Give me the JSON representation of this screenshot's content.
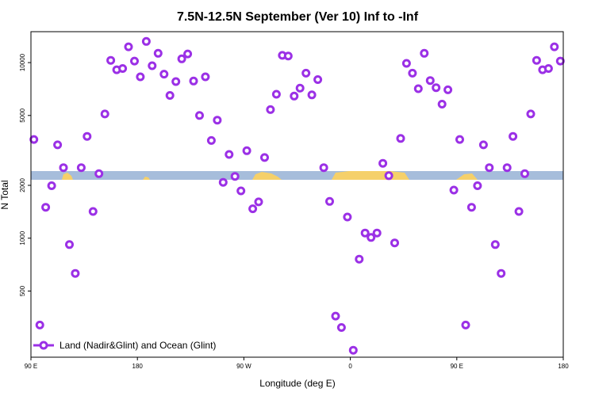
{
  "chart_data": {
    "type": "scatter",
    "title": "7.5N-12.5N September (Ver 10)   Inf to -Inf",
    "xlabel": "Longitude (deg E)",
    "ylabel": "N Total",
    "y_scale": "log",
    "xlim": [
      90,
      540
    ],
    "ylim": [
      210,
      15000
    ],
    "x_ticks": [
      {
        "value": 90,
        "label": "90 E"
      },
      {
        "value": 180,
        "label": "180"
      },
      {
        "value": 270,
        "label": "90 W"
      },
      {
        "value": 360,
        "label": "0"
      },
      {
        "value": 450,
        "label": "90 E"
      },
      {
        "value": 540,
        "label": "180"
      }
    ],
    "y_ticks": [
      {
        "value": 500,
        "label": "500"
      },
      {
        "value": 1000,
        "label": "1000"
      },
      {
        "value": 2000,
        "label": "2000"
      },
      {
        "value": 5000,
        "label": "5000"
      },
      {
        "value": 10000,
        "label": "10000"
      }
    ],
    "grid": false,
    "legend": {
      "position": "bottom-left",
      "entries": [
        "Land (Nadir&Glint) and Ocean (Glint)"
      ]
    },
    "series": [
      {
        "name": "Land (Nadir&Glint) and Ocean (Glint)",
        "color": "#9b30e6",
        "points": [
          [
            92.5,
            3650
          ],
          [
            97.5,
            320
          ],
          [
            102.5,
            1500
          ],
          [
            107.5,
            1990
          ],
          [
            112.5,
            3400
          ],
          [
            117.5,
            2520
          ],
          [
            122.5,
            920
          ],
          [
            127.5,
            630
          ],
          [
            132.5,
            2520
          ],
          [
            137.5,
            3800
          ],
          [
            142.5,
            1420
          ],
          [
            147.5,
            2330
          ],
          [
            152.5,
            5100
          ],
          [
            157.5,
            10300
          ],
          [
            162.5,
            9100
          ],
          [
            167.5,
            9250
          ],
          [
            172.5,
            12300
          ],
          [
            177.5,
            10200
          ],
          [
            182.5,
            8300
          ],
          [
            187.5,
            13200
          ],
          [
            192.5,
            9600
          ],
          [
            197.5,
            11300
          ],
          [
            202.5,
            8600
          ],
          [
            207.5,
            6500
          ],
          [
            212.5,
            7800
          ],
          [
            217.5,
            10500
          ],
          [
            222.5,
            11200
          ],
          [
            227.5,
            7850
          ],
          [
            232.5,
            5000
          ],
          [
            237.5,
            8300
          ],
          [
            242.5,
            3600
          ],
          [
            247.5,
            4700
          ],
          [
            252.5,
            2080
          ],
          [
            257.5,
            3000
          ],
          [
            262.5,
            2250
          ],
          [
            267.5,
            1860
          ],
          [
            272.5,
            3150
          ],
          [
            277.5,
            1470
          ],
          [
            282.5,
            1610
          ],
          [
            287.5,
            2880
          ],
          [
            292.5,
            5400
          ],
          [
            297.5,
            6600
          ],
          [
            302.5,
            11000
          ],
          [
            307.5,
            10900
          ],
          [
            312.5,
            6450
          ],
          [
            317.5,
            7150
          ],
          [
            322.5,
            8700
          ],
          [
            327.5,
            6550
          ],
          [
            332.5,
            8000
          ],
          [
            337.5,
            2520
          ],
          [
            342.5,
            1620
          ],
          [
            347.5,
            360
          ],
          [
            352.5,
            310
          ],
          [
            357.5,
            1320
          ],
          [
            362.5,
            230
          ],
          [
            367.5,
            760
          ],
          [
            372.5,
            1070
          ],
          [
            377.5,
            1010
          ],
          [
            382.5,
            1070
          ],
          [
            387.5,
            2670
          ],
          [
            392.5,
            2270
          ],
          [
            397.5,
            940
          ],
          [
            402.5,
            3700
          ],
          [
            407.5,
            9900
          ],
          [
            412.5,
            8700
          ],
          [
            417.5,
            7100
          ],
          [
            422.5,
            11300
          ],
          [
            427.5,
            7900
          ],
          [
            432.5,
            7200
          ],
          [
            437.5,
            5800
          ],
          [
            442.5,
            7000
          ],
          [
            447.5,
            1880
          ],
          [
            452.5,
            3650
          ],
          [
            457.5,
            320
          ],
          [
            462.5,
            1500
          ],
          [
            467.5,
            1990
          ],
          [
            472.5,
            3400
          ],
          [
            477.5,
            2520
          ],
          [
            482.5,
            920
          ],
          [
            487.5,
            630
          ],
          [
            492.5,
            2520
          ],
          [
            497.5,
            3800
          ],
          [
            502.5,
            1420
          ],
          [
            507.5,
            2330
          ],
          [
            512.5,
            5100
          ],
          [
            517.5,
            10300
          ],
          [
            522.5,
            9100
          ],
          [
            527.5,
            9250
          ],
          [
            532.5,
            12300
          ],
          [
            537.5,
            10200
          ]
        ]
      }
    ]
  }
}
